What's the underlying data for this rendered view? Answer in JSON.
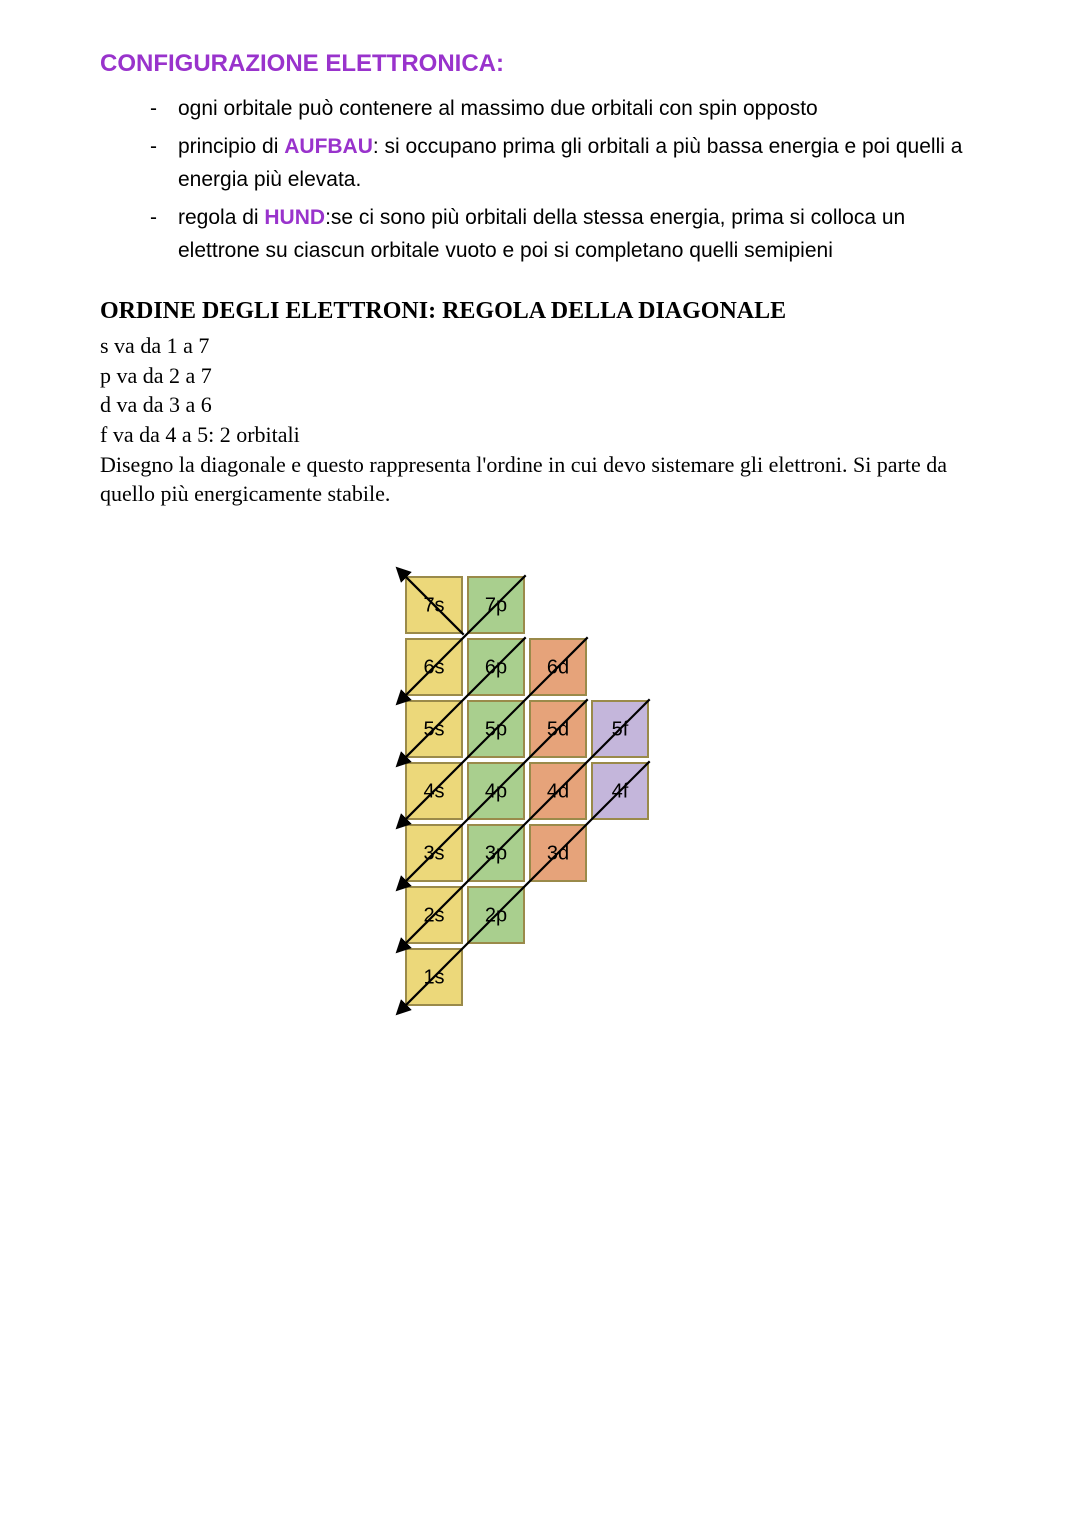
{
  "title": "CONFIGURAZIONE ELETTRONICA:",
  "bullets": [
    {
      "pre": "ogni orbitale può contenere al massimo due orbitali con spin opposto",
      "kw": "",
      "post": ""
    },
    {
      "pre": "principio di ",
      "kw": "AUFBAU",
      "post": ": si occupano prima gli orbitali a più bassa energia e poi quelli a energia più elevata."
    },
    {
      "pre": "regola di ",
      "kw": "HUND",
      "post": ":se ci sono più orbitali della stessa energia, prima si colloca un elettrone su ciascun orbitale vuoto e poi si completano quelli semipieni"
    }
  ],
  "section2": {
    "heading": "ORDINE DEGLI ELETTRONI: REGOLA DELLA DIAGONALE",
    "lines": [
      "s va da 1 a 7",
      "p va da 2 a 7",
      "d va da 3 a 6",
      "f va da 4 a 5: 2 orbitali",
      "Disegno la diagonale e questo rappresenta l'ordine in cui devo sistemare gli elettroni. Si parte da quello più energicamente stabile."
    ]
  },
  "diagram": {
    "type": "diagram",
    "cell_size": 56,
    "cell_gap": 6,
    "stroke_color": "#9a8a4a",
    "stroke_width": 2,
    "colors": {
      "s": "#ecd87a",
      "p": "#a9cf8e",
      "d": "#e6a37a",
      "f": "#c4b6db"
    },
    "label_font_family": "Comic Sans MS, cursive, sans-serif",
    "label_font_size": 20,
    "label_color": "#000000",
    "cells": [
      {
        "row": 0,
        "col": 0,
        "label": "7s",
        "type": "s"
      },
      {
        "row": 0,
        "col": 1,
        "label": "7p",
        "type": "p"
      },
      {
        "row": 1,
        "col": 0,
        "label": "6s",
        "type": "s"
      },
      {
        "row": 1,
        "col": 1,
        "label": "6p",
        "type": "p"
      },
      {
        "row": 1,
        "col": 2,
        "label": "6d",
        "type": "d"
      },
      {
        "row": 2,
        "col": 0,
        "label": "5s",
        "type": "s"
      },
      {
        "row": 2,
        "col": 1,
        "label": "5p",
        "type": "p"
      },
      {
        "row": 2,
        "col": 2,
        "label": "5d",
        "type": "d"
      },
      {
        "row": 2,
        "col": 3,
        "label": "5f",
        "type": "f"
      },
      {
        "row": 3,
        "col": 0,
        "label": "4s",
        "type": "s"
      },
      {
        "row": 3,
        "col": 1,
        "label": "4p",
        "type": "p"
      },
      {
        "row": 3,
        "col": 2,
        "label": "4d",
        "type": "d"
      },
      {
        "row": 3,
        "col": 3,
        "label": "4f",
        "type": "f"
      },
      {
        "row": 4,
        "col": 0,
        "label": "3s",
        "type": "s"
      },
      {
        "row": 4,
        "col": 1,
        "label": "3p",
        "type": "p"
      },
      {
        "row": 4,
        "col": 2,
        "label": "3d",
        "type": "d"
      },
      {
        "row": 5,
        "col": 0,
        "label": "2s",
        "type": "s"
      },
      {
        "row": 5,
        "col": 1,
        "label": "2p",
        "type": "p"
      },
      {
        "row": 6,
        "col": 0,
        "label": "1s",
        "type": "s"
      }
    ],
    "arrows": [
      {
        "start": [
          0,
          0
        ],
        "end": [
          0,
          0
        ]
      },
      {
        "start": [
          0,
          1
        ],
        "end": [
          1,
          0
        ]
      },
      {
        "start": [
          1,
          1
        ],
        "end": [
          2,
          0
        ]
      },
      {
        "start": [
          1,
          2
        ],
        "end": [
          3,
          0
        ]
      },
      {
        "start": [
          2,
          2
        ],
        "end": [
          4,
          0
        ]
      },
      {
        "start": [
          2,
          3
        ],
        "end": [
          5,
          0
        ]
      },
      {
        "start": [
          3,
          3
        ],
        "end": [
          6,
          0
        ]
      }
    ],
    "arrow_color": "#000000",
    "arrow_width": 2.2,
    "arrow_pad_before": 42,
    "arrow_pad_after": 42
  }
}
